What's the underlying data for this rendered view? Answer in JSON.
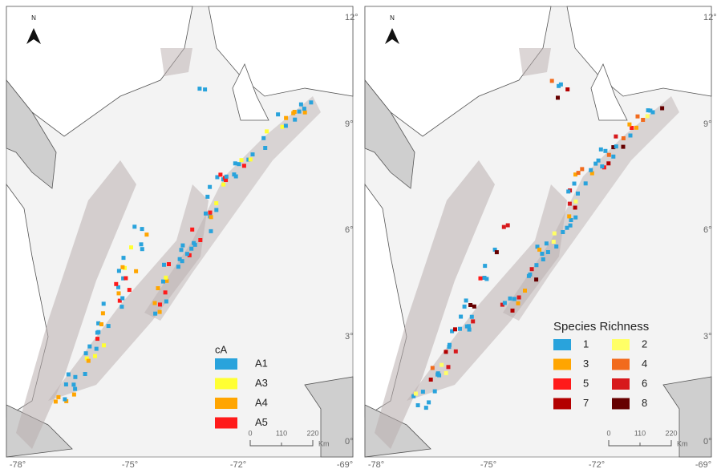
{
  "maps": [
    {
      "north": "N",
      "lat_labels": [
        "12°",
        "9°",
        "6°",
        "3°",
        "0°"
      ],
      "lon_labels": [
        "-78°",
        "-75°",
        "-72°",
        "-69°"
      ],
      "legend": {
        "title": "cA",
        "items": [
          {
            "label": "A1",
            "color": "#29a3dc"
          },
          {
            "label": "A3",
            "color": "#ffff33"
          },
          {
            "label": "A4",
            "color": "#ffa500"
          },
          {
            "label": "A5",
            "color": "#ff1a1a"
          }
        ]
      },
      "scale": {
        "ticks": [
          "0",
          "110",
          "220"
        ],
        "unit": "Km"
      }
    },
    {
      "north": "N",
      "lat_labels": [
        "12°",
        "9°",
        "6°",
        "3°",
        "0°"
      ],
      "lon_labels": [
        "-78°",
        "-75°",
        "-72°",
        "-69°"
      ],
      "legend": {
        "title": "Species Richness",
        "items": [
          {
            "label": "1",
            "color": "#29a3dc"
          },
          {
            "label": "2",
            "color": "#ffff66"
          },
          {
            "label": "3",
            "color": "#ffa500"
          },
          {
            "label": "4",
            "color": "#f26b1d"
          },
          {
            "label": "5",
            "color": "#ff1a1a"
          },
          {
            "label": "6",
            "color": "#d7191c"
          },
          {
            "label": "7",
            "color": "#b30000"
          },
          {
            "label": "8",
            "color": "#660000"
          }
        ]
      },
      "scale": {
        "ticks": [
          "0",
          "110",
          "220"
        ],
        "unit": "Km"
      }
    }
  ]
}
